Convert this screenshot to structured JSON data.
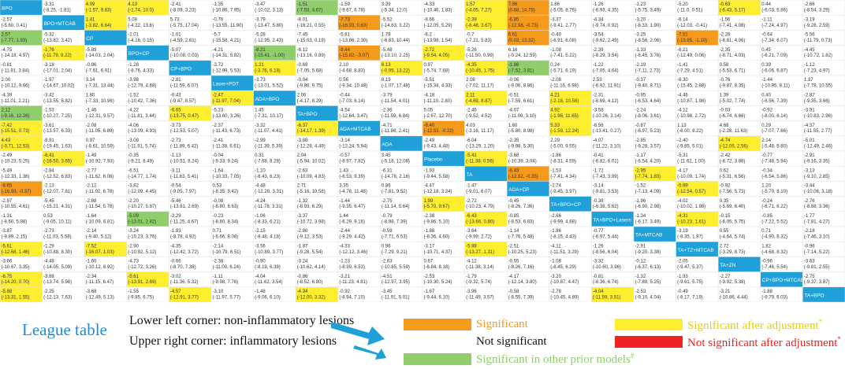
{
  "chart_data": {
    "type": "table",
    "title": "League table",
    "n": 20,
    "upper_right": "Upper right corner: inflammatory lesions",
    "lower_left": "Lower left corner: non-inflammatory lesions",
    "treatments": [
      "BPO",
      "BPO+MTCAB",
      "CP",
      "BPO+CP",
      "CP+BPO",
      "Laser+PDT",
      "ADA+BPO",
      "TA+BPO",
      "ADA+MTCAB",
      "ADA",
      "Placebo",
      "TA",
      "ADA+CP",
      "TA+BPO+CP",
      "TA+BPO+Lasers",
      "TA+MTCAB",
      "TA+TZ+MTCAB",
      "TA+ZN",
      "CP+BPO+MTCAB",
      "TA+BPO"
    ],
    "cells": [
      [
        null,
        "-3.31\n(-8.25, -1.81)",
        "4.09\n(-1.57, 9.83)",
        "4.13\n(-1.74, 10.0)",
        "-2.41\n(-8.09, 3.23)",
        "-1.35\n(-10.86, 7.95)",
        "-3.47\n(-10.02, 3.13)",
        "-1.51\n(-7.53, 4.67)",
        "-1.59\n(-9.67, 6.78)",
        "3.39\n(-5.34, 12.0)",
        "-4.33\n(-10.46, 1.83)",
        "1.57\n(-4.05, 7.27)",
        "7.86\n(0.88, 14.75)",
        "1.86\n(-5.05, 8.76)",
        "-1.26\n(-6.93, 4.35)",
        "-1.23\n(-5.75, 3.49)",
        "-5.20\n(-11.0, 0.51)",
        "-0.63\n(-6.43, 5.17)",
        "0.44\n(-6.03, 6.86)",
        "-2.66\n(-8.54, 3.29)"
      ],
      [
        "-2.57\n(-5.60, 0.41)",
        null,
        "1.41\n(-3.82, 6.64)",
        "5.08\n(-4.22, 13.6)",
        "5.73\n(-5.75, 17.04)",
        "-0.76\n(-13.55, 11.90)",
        "-3.79\n(-13.47, 5.80)",
        "-8.01\n(-16.21, 0.55)",
        "-7.73\n(-16.03, 0.63)",
        "-5.52\n(-14.63, 3.22)",
        "-8.66\n(-12.05, 5.29)",
        "-2.39\n(-8.48, 3.67)",
        "-6.85\n(-12.98, -0.73)",
        "-3.37\n(-9.41, 2.77)",
        "-4.34\n(-9.74, 0.92)",
        "-3.20\n(-8.33, 1.90)",
        "-6.14\n(-12.03, -0.41)",
        "-1.56\n(-7.41, 4.08)",
        "-1.11\n(-7.24, 4.97)",
        "-3.19\n(-9.28, 2.59)"
      ],
      [
        "2.57\n(-7.77, 1.93)",
        "-5.32\n(-13.82, 3.42)",
        null,
        "-2.01\n(-4.16, 0.15)",
        "-1.01\n(-4.59, 2.61)",
        "-5.7\n(-15.58, 4.21)",
        "-5.28\n(-12.95, 2.43)",
        "-7.45\n(-15.03, 0.19)",
        "-5.81\n(-13.86, 2.30)",
        "1.78\n(-6.83, 10.44)",
        "-6.2\n(-13.98, 1.54)",
        "-0.7\n(-7.21, 5.83)",
        "6.61\n(0.03, 13.32)",
        "-0.40\n(-6.91, 6.08)",
        "-3.54\n(-9.62, 2.49)",
        "-3.25\n(-8.56, 2.06)",
        "-7.51\n(-13.95, -1.10)",
        "-2.26\n(-8.61, 4.06)",
        "-0.64\n(-7.34, 6.07)",
        "-5.56\n(-11.79, 0.73)"
      ],
      [
        "-4.75\n(-14.18, 4.97)",
        "-1.76\n(-11.79, 8.22)",
        "-5.89\n(-14.03, 2.04)",
        null,
        "-5.07\n(-10.08, 0.03)",
        "-4.21\n(-14.31, 5.82)",
        "-8.21\n(-15.41, -1.00)",
        "-6.12\n(-13.16, 0.89)",
        "-9.44\n(-15.82, -3.07)",
        "-5.48\n(-13.10, 2.25)",
        "-2.72\n(-9.54, 4.05)",
        "-5.26\n(-11.50, 0.99)",
        "6.16\n(-0.24, 12.59)",
        "-1.08\n(-7.41, 5.22)",
        "-2.39\n(-8.29, 3.54)",
        "-1.33\n(-6.45, 3.76)",
        "-6.21\n(-12.49, 0.06)",
        "-2.35\n(-8.71, 4.03)",
        "0.45\n(-6.21, 7.09)",
        "-4.45\n(-10.72, 1.82)"
      ],
      [
        "-0.81\n(-11.91, 3.84)",
        "-3.18\n(-17.01, 2.04)",
        "-0.86\n(-7.61, 6.91)",
        "-1.28\n(-8.76, 4.33)",
        null,
        "-3.72\n(-12.99, 5.53)",
        "1.21\n(-3.76, 6.18)",
        "-0.69\n(-7.05, 5.68)",
        "2.10\n(-4.68, 8.83)",
        "6.13\n(-0.95, 13.22)",
        "0.97\n(-5.74, 7.68)",
        "-4.35\n(-10.45, 1.75)",
        "-1.86\n(-7.52, 3.81)",
        "0.24\n(-5.71, 6.19)",
        "-1.22\n(-7.05, 4.64)",
        "-2.19\n(-7.11, 2.73)",
        "-1.41\n(-7.29, 4.51)",
        "0.58\n(-5.53, 6.71)",
        "0.39\n(-6.06, 6.87)",
        "-1.12\n(-7.23, 4.97)"
      ],
      [
        "2.00\n(-10.12, 9.66)",
        "-1.97\n(-14.67, 10.02)",
        "3.14\n(-7.31, 13.44)",
        "-3.98\n(-12.79, 4.68)",
        "-2.81\n(-11.59, 6.07)",
        null,
        "-3.73\n(-13.01, 5.52)",
        "-0.04\n(-9.86, 9.75)",
        "0.56\n(-9.34, 10.48)",
        "8.19\n(-1.07, 17.48)",
        "-5.51\n(-15.34, 4.33)",
        "2.08\n(-7.02, 11.17)",
        "-0.06\n(-9.06, 8.86)",
        "-2.08\n(-11.16, 6.98)",
        "2.53\n(-6.92, 11.91)",
        "-0.37\n(-9.40, 8.71)",
        "-6.30\n(-15.45, 2.88)",
        "-0.76\n(-9.87, 8.35)",
        "-1.44\n(-10.95, 8.11)",
        "1.37\n(-7.78, 10.55)"
      ],
      [
        "-4.39\n(-11.01, 2.21)",
        "-3.42\n(-13.55, 6.82)",
        "1.80\n(-7.33, 10.96)",
        "-1.52\n(-10.42, 7.36)",
        "-0.43\n(-9.47, 8.57)",
        "-2.47\n(-11.97, 7.04)",
        null,
        "2.06\n(-4.17, 8.29)",
        "-0.44\n(-7.03, 6.14)",
        "-3.79\n(-11.54, 4.01)",
        "-4.18\n(-11.10, 2.80)",
        "2.11\n(-4.69, 8.87)",
        "-0.51\n(-7.59, 6.61)",
        "4.21\n(-2.18, 10.58)",
        "-2.31\n(-8.69, 4.12)",
        "-0.95\n(-6.53, 4.64)",
        "-4.46\n(-10.87, 1.98)",
        "1.39\n(-5.02, 7.74)",
        "0.40\n(-6.56, 7.39)",
        "-2.87\n(-9.35, 3.66)"
      ],
      [
        "2.12\n(-9.16, 12.26)",
        "-1.53\n(-10.27, 7.25)",
        "-1.46\n(-12.31, 9.57)",
        "-4.22\n(-11.81, 3.44)",
        "-6.65\n(-13.75, 0.47)",
        "-5.23\n(-13.60, 3.26)",
        "1.45\n(-7.31, 10.17)",
        null,
        "-4.54\n(-12.64, 3.47)",
        "-2.36\n(-11.59, 6.84)",
        "5.05\n(-2.67, 12.70)",
        "-2.46\n(-9.52, 4.52)",
        "-4.07\n(-11.09, 3.10)",
        "4.92\n(-1.96, 11.65)",
        "-3.58\n(-10.26, 3.14)",
        "-2.24\n(-8.06, 3.61)",
        "-4.12\n(-10.98, 2.72)",
        "-0.03\n(-6.74, 6.66)",
        "-0.92\n(-8.00, 6.14)",
        "-3.91\n(-10.83, 2.96)"
      ],
      [
        "-7.42\n(-15.51, 0.73)",
        "-3.61\n(-13.57, 6.33)",
        "-2.08\n(-11.05, 6.89)",
        "-4.06\n(-13.09, 4.93)",
        "-3.73\n(-12.53, 5.07)",
        "-2.37\n(-11.43, 6.73)",
        "-3.32\n(-11.07, 4.41)",
        "-6.37\n(-14.17, 1.39)",
        null,
        "-4.71\n(-11.86, 2.41)",
        "-6.40\n(-12.53, -0.22)",
        "4.03\n(-3.16, 11.17)",
        "1.60\n(-5.80, 8.98)",
        "5.33\n(-1.59, 12.24)",
        "-6.56\n(-13.41, 0.27)",
        "-0.87\n(-6.97, 5.23)",
        "1.13\n(-6.00, 8.22)",
        "4.68\n(-2.28, 11.63)",
        "0.29\n(-7.07, 7.66)",
        "-4.37\n(-11.55, 2.77)"
      ],
      [
        "4.43\n(-3.71, 12.53)",
        "-8.91\n(-19.45, 1.63)",
        "0.97\n(-8.61, 10.59)",
        "-3.08\n(-11.91, 5.74)",
        "-2.73\n(-11.89, 6.42)",
        "-2.41\n(-11.38, 6.61)",
        "-2.99\n(-11.39, 5.39)",
        "-3.88\n(-12.28, 4.49)",
        "-3.14\n(-12.24, 5.94)",
        null,
        "-2.49\n(-9.43, 4.48)",
        "-6.04\n(-13.29, 1.20)",
        "-2.35\n(-9.98, 5.30)",
        "2.29\n(-5.00, 9.55)",
        "-4.07\n(-11.22, 3.10)",
        "-2.85\n(-9.28, 3.57)",
        "-2.40\n(-9.85, 5.01)",
        "-4.74\n(-12.05, 2.56)",
        "2.14\n(-5.48, 9.80)",
        "-5.01\n(-12.49, 2.46)"
      ],
      [
        "-2.49\n(-10.23, 5.25)",
        "-6.41\n(-16.50, 3.65)",
        "-1.49\n(-10.92, 7.93)",
        "-0.35\n(-9.21, 8.49)",
        "-1.13\n(-10.51, 8.24)",
        "-0.04\n(-9.33, 9.24)",
        "0.31\n(-7.68, 8.29)",
        "2.04\n(-5.94, 10.02)",
        "-0.57\n(-8.97, 7.82)",
        "3.45\n(-5.18, 12.08)",
        null,
        "-5.41\n(-11.38, 0.56)",
        "-3.68\n(-10.39, 3.04)",
        "-1.86\n(-8.31, 4.59)",
        "-0.41\n(-6.82, 6.01)",
        "-1.17\n(-6.54, 4.20)",
        "-5.31\n(-11.62, 1.00)",
        "-2.42\n(-8.72, 3.88)",
        "-0.77\n(-7.48, 5.94)",
        "-2.91\n(-9.16, 3.35)"
      ],
      [
        "-5.49\n(-12.33, 1.36)",
        "-2.84\n(-12.52, 6.83)",
        "-2.77\n(-11.62, 6.08)",
        "-6.51\n(-14.77, 1.74)",
        "-3.11\n(-11.63, 5.41)",
        "-1.64\n(-10.33, 7.05)",
        "-1.10\n(-8.43, 6.23)",
        "-2.63\n(-10.09, 4.83)",
        "1.43\n(-6.53, 9.39)",
        "-6.31\n(-14.78, 2.16)",
        "-1.93\n(-9.44, 5.58)",
        null,
        "-6.43\n(-12.52, -0.35)",
        "-1.53\n(-7.41, 4.34)",
        "-1.72\n(-7.43, 3.99)",
        "-2.95\n(-7.74, 1.83)",
        "-4.17\n(-10.09, 1.74)",
        "0.62\n(-5.31, 6.56)",
        "-0.34\n(-6.54, 5.86)",
        "-3.13\n(-9.10, 2.85)"
      ],
      [
        "-8.65\n(-16.93, -0.37)",
        "-2.13\n(-12.07, 7.81)",
        "-2.12\n(-11.02, 6.78)",
        "-3.82\n(-12.09, 4.45)",
        "-0.54\n(-9.05, 7.97)",
        "0.53\n(-8.35, 9.42)",
        "-4.48\n(-12.28, 3.31)",
        "2.71\n(-5.16, 10.58)",
        "3.35\n(-4.78, 11.48)",
        "0.86\n(-7.81, 9.52)",
        "-4.47\n(-12.18, 3.24)",
        "-1.47\n(-9.01, 6.07)",
        null,
        "-2.74\n(-9.45, 3.97)",
        "-3.14\n(-9.81, 3.53)",
        "-1.52\n(-7.13, 4.09)",
        "-5.99\n(-12.54, 0.57)",
        "-0.92\n(-7.56, 5.73)",
        "1.20\n(-5.70, 8.10)",
        "-3.44\n(-10.06, 3.18)"
      ],
      [
        "-2.97\n(-10.55, 4.61)",
        "-5.45\n(-15.21, 4.31)",
        "-2.88\n(-11.54, 5.78)",
        "-2.20\n(-10.27, 5.87)",
        "-5.46\n(-13.61, 2.69)",
        "-0.08\n(-8.80, 8.63)",
        "-4.24\n(-11.78, 3.31)",
        "-1.32\n(-8.93, 6.29)",
        "-1.44\n(-9.35, 6.47)",
        "-2.75\n(-11.14, 5.64)",
        "1.99\n(-5.70, 9.67)",
        "-2.72\n(-10.23, 4.79)",
        "-0.45\n(-8.26, 7.36)",
        null,
        "-0.38\n(-6.38, 5.62)",
        "-1.96\n(-6.90, 2.98)",
        "-4.02\n(-10.02, 1.98)",
        "0.35\n(-5.69, 6.40)",
        "-0.24\n(-6.71, 6.22)",
        "-2.76\n(-8.88, 3.36)"
      ],
      [
        "-1.31\n(-8.60, 5.98)",
        "0.53\n(-9.05, 10.11)",
        "-1.64\n(-10.09, 6.81)",
        "-5.09\n(-13.01, 2.82)",
        "-3.29\n(-11.25, 4.67)",
        "-0.23\n(-8.80, 8.34)",
        "-1.06\n(-8.33, 6.21)",
        "-3.37\n(-10.72, 3.98)",
        "1.44\n(-6.29, 9.16)",
        "-0.79\n(-8.98, 7.39)",
        "-2.38\n(-9.86, 5.10)",
        "-6.43\n(-13.66, 0.80)",
        "-0.85\n(-8.53, 6.83)",
        "-2.66\n(-9.99, 4.68)",
        null,
        "-1.34\n(-6.17, 3.49)",
        "-4.31\n(-10.23, 1.61)",
        "-0.15\n(-6.05, 5.75)",
        "-0.85\n(-7.22, 5.52)",
        "-1.77\n(-7.81, 4.27)"
      ],
      [
        "-3.87\n(-9.89, 2.15)",
        "-2.73\n(-11.03, 5.58)",
        "-2.14\n(-9.40, 5.12)",
        "-3.24\n(-10.23, 3.76)",
        "-1.93\n(-8.78, 4.92)",
        "0.71\n(-6.66, 8.08)",
        "-2.15\n(-8.48, 4.18)",
        "-2.80\n(-9.12, 3.53)",
        "-2.44\n(-9.29, 4.42)",
        "-0.59\n(-7.71, 6.53)",
        "-1.88\n(-8.36, 4.60)",
        "-3.64\n(-9.99, 2.72)",
        "-1.14\n(-7.76, 5.48)",
        "-1.86\n(-8.15, 4.43)",
        "-0.77\n(-6.97, 5.44)",
        null,
        "-3.19\n(-8.35, 1.97)",
        "0.55\n(-4.64, 5.74)",
        "0.71\n(-4.90, 6.32)",
        "-2.18\n(-7.46, 3.10)"
      ],
      [
        "-5.61\n(-12.68, 1.46)",
        "-1.29\n(-10.88, 8.30)",
        "-7.52\n(-16.07, 1.03)",
        "-2.90\n(-10.92, 5.12)",
        "-4.35\n(-12.42, 3.72)",
        "-2.14\n(-10.79, 6.51)",
        "-3.56\n(-10.89, 3.77)",
        "-1.87\n(-9.28, 5.54)",
        "-4.33\n(-12.12, 3.46)",
        "0.96\n(-7.29, 9.21)",
        "-3.17\n(-10.71, 4.37)",
        "-5.98\n(-13.27, 1.31)",
        "-2.51\n(-10.25, 5.23)",
        "-4.11\n(-11.51, 3.29)",
        "-1.26\n(-8.56, 6.04)",
        "-2.91\n(-9.20, 3.38)",
        null,
        "2.72\n(-3.29, 8.73)",
        "1.82\n(-4.68, 8.32)",
        "-0.96\n(-7.14, 5.22)"
      ],
      [
        "-3.66\n(-10.67, 3.35)",
        "-4.48\n(-14.05, 5.09)",
        "-1.60\n(-10.12, 6.92)",
        "-4.73\n(-12.72, 3.26)",
        "-0.66\n(-8.70, 7.38)",
        "-2.38\n(-11.00, 6.24)",
        "-0.90\n(-8.19, 6.39)",
        "-3.24\n(-10.62, 4.14)",
        "-1.23\n(-8.99, 6.53)",
        "-2.63\n(-10.85, 5.59)",
        "0.67\n(-6.84, 8.18)",
        "-4.12\n(-11.38, 3.14)",
        "-0.55\n(-8.26, 7.16)",
        "-1.08\n(-8.45, 6.29)",
        "-3.32\n(-10.60, 3.96)",
        "-0.12\n(-6.37, 6.13)",
        "-2.05\n(-9.47, 5.37)",
        null,
        "-0.96\n(-7.46, 5.54)",
        "-3.63\n(-9.81, 2.55)"
      ],
      [
        "-6.75\n(-14.20, 0.70)",
        "-3.88\n(-13.74, 5.98)",
        "-2.34\n(-11.15, 6.47)",
        "-5.61\n(-13.91, 2.69)",
        "-3.02\n(-11.36, 5.32)",
        "-1.11\n(-9.98, 7.76)",
        "-4.04\n(-11.62, 3.54)",
        "-0.86\n(-8.52, 6.80)",
        "-3.21\n(-11.23, 4.81)",
        "-4.51\n(-12.97, 3.95)",
        "-2.53\n(-10.30, 5.24)",
        "-1.79\n(-9.32, 5.74)",
        "-4.17\n(-12.14, 3.80)",
        "-3.20\n(-10.87, 4.47)",
        "-0.81\n(-8.36, 6.74)",
        "-1.32\n(-7.89, 5.25)",
        "-1.93\n(-9.61, 5.75)",
        "-2.27\n(-9.92, 5.38)",
        null,
        "-2.75\n(-9.37, 3.87)"
      ],
      [
        "-5.88\n(-13.31, 1.55)",
        "-2.25\n(-12.13, 7.63)",
        "-3.68\n(-12.49, 5.13)",
        "-1.55\n(-9.85, 6.75)",
        "-4.57\n(-12.91, 3.77)",
        "-3.10\n(-11.97, 5.77)",
        "-1.48\n(-9.06, 6.10)",
        "-4.34\n(-12.00, 3.32)",
        "-0.92\n(-8.94, 7.10)",
        "-3.45\n(-11.91, 5.01)",
        "-1.67\n(-9.44, 6.10)",
        "-3.96\n(-11.49, 3.57)",
        "-0.58\n(-8.55, 7.39)",
        "-2.78\n(-10.45, 4.89)",
        "-4.04\n(-11.59, 3.51)",
        "-2.53\n(-9.10, 4.04)",
        "-0.49\n(-8.17, 7.19)",
        "-3.21\n(-10.86, 4.44)",
        "-1.88\n(-9.79, 6.03)",
        null
      ]
    ],
    "cell_status": [
      [
        "t",
        "n",
        "y",
        "y",
        "n",
        "n",
        "n",
        "g",
        "n",
        "n",
        "n",
        "y",
        "o",
        "n",
        "n",
        "n",
        "n",
        "y",
        "n",
        "n"
      ],
      [
        "n",
        "t",
        "y",
        "n",
        "n",
        "n",
        "n",
        "n",
        "o",
        "n",
        "n",
        "y",
        "o",
        "n",
        "n",
        "n",
        "n",
        "n",
        "n",
        "n"
      ],
      [
        "g",
        "n",
        "t",
        "n",
        "n",
        "n",
        "n",
        "n",
        "n",
        "n",
        "n",
        "n",
        "o",
        "n",
        "n",
        "n",
        "o",
        "n",
        "n",
        "n"
      ],
      [
        "n",
        "y",
        "n",
        "t",
        "n",
        "n",
        "g",
        "n",
        "o",
        "n",
        "y",
        "n",
        "n",
        "n",
        "n",
        "n",
        "n",
        "n",
        "n",
        "n"
      ],
      [
        "n",
        "n",
        "n",
        "n",
        "t",
        "n",
        "y",
        "n",
        "n",
        "y",
        "n",
        "y",
        "g",
        "n",
        "n",
        "n",
        "n",
        "n",
        "n",
        "n"
      ],
      [
        "n",
        "n",
        "n",
        "n",
        "n",
        "t",
        "n",
        "n",
        "n",
        "n",
        "n",
        "n",
        "n",
        "n",
        "n",
        "n",
        "n",
        "n",
        "n",
        "n"
      ],
      [
        "n",
        "n",
        "n",
        "n",
        "n",
        "y",
        "t",
        "n",
        "n",
        "n",
        "n",
        "y",
        "n",
        "y",
        "n",
        "n",
        "n",
        "n",
        "n",
        "n"
      ],
      [
        "g",
        "n",
        "n",
        "n",
        "y",
        "n",
        "n",
        "t",
        "n",
        "n",
        "n",
        "n",
        "n",
        "y",
        "n",
        "n",
        "n",
        "n",
        "n",
        "n"
      ],
      [
        "y",
        "n",
        "n",
        "n",
        "n",
        "n",
        "n",
        "y",
        "t",
        "n",
        "o",
        "n",
        "n",
        "y",
        "n",
        "n",
        "n",
        "n",
        "n",
        "n"
      ],
      [
        "y",
        "n",
        "n",
        "n",
        "n",
        "n",
        "n",
        "n",
        "n",
        "t",
        "n",
        "n",
        "n",
        "n",
        "n",
        "n",
        "n",
        "y",
        "n",
        "n"
      ],
      [
        "n",
        "y",
        "n",
        "n",
        "n",
        "n",
        "n",
        "n",
        "n",
        "n",
        "t",
        "y",
        "n",
        "n",
        "n",
        "n",
        "n",
        "n",
        "n",
        "n"
      ],
      [
        "n",
        "n",
        "n",
        "n",
        "n",
        "n",
        "n",
        "n",
        "n",
        "n",
        "n",
        "t",
        "o",
        "n",
        "n",
        "y",
        "n",
        "n",
        "n",
        "n"
      ],
      [
        "o",
        "n",
        "n",
        "n",
        "n",
        "n",
        "n",
        "n",
        "n",
        "n",
        "n",
        "n",
        "t",
        "n",
        "n",
        "n",
        "y",
        "n",
        "n",
        "n"
      ],
      [
        "n",
        "n",
        "n",
        "n",
        "n",
        "n",
        "n",
        "n",
        "n",
        "n",
        "y",
        "n",
        "n",
        "t",
        "n",
        "n",
        "n",
        "n",
        "n",
        "n"
      ],
      [
        "n",
        "n",
        "n",
        "g",
        "n",
        "n",
        "n",
        "n",
        "n",
        "n",
        "n",
        "y",
        "n",
        "n",
        "t",
        "n",
        "y",
        "n",
        "n",
        "n"
      ],
      [
        "n",
        "n",
        "n",
        "n",
        "n",
        "n",
        "n",
        "n",
        "n",
        "n",
        "n",
        "n",
        "n",
        "n",
        "n",
        "t",
        "n",
        "n",
        "n",
        "n"
      ],
      [
        "y",
        "n",
        "y",
        "n",
        "n",
        "n",
        "n",
        "n",
        "n",
        "n",
        "n",
        "y",
        "n",
        "n",
        "n",
        "n",
        "t",
        "n",
        "n",
        "n"
      ],
      [
        "n",
        "n",
        "n",
        "n",
        "n",
        "n",
        "n",
        "n",
        "n",
        "n",
        "n",
        "n",
        "n",
        "n",
        "n",
        "n",
        "n",
        "t",
        "n",
        "n"
      ],
      [
        "y",
        "n",
        "n",
        "y",
        "n",
        "n",
        "n",
        "n",
        "n",
        "n",
        "n",
        "n",
        "n",
        "n",
        "n",
        "n",
        "n",
        "n",
        "t",
        "n"
      ],
      [
        "y",
        "n",
        "n",
        "n",
        "y",
        "n",
        "n",
        "y",
        "n",
        "n",
        "n",
        "n",
        "n",
        "n",
        "y",
        "n",
        "n",
        "n",
        "n",
        "t"
      ]
    ],
    "colors": {
      "o": "#f59a1a",
      "y": "#ffee2e",
      "r": "#ee2222",
      "g": "#8fce6a",
      "n": "#ffffff",
      "t": "#1fa0d8"
    }
  },
  "legend": {
    "title": "League table",
    "lower_left": "Lower left corner: non-inflammatory lesions",
    "upper_right": "Upper right corner: inflammatory lesions",
    "items": [
      {
        "key": "o",
        "label": "Significant",
        "color": "#f59a1a"
      },
      {
        "key": "n",
        "label": "Not significant",
        "color": "#ffffff"
      },
      {
        "key": "g",
        "label": "Significant in other prior models",
        "color": "#8fce6a"
      },
      {
        "key": "y",
        "label": "Significant after adjustment",
        "color": "#ffee2e"
      },
      {
        "key": "r",
        "label": "Not significant after adjustment",
        "color": "#ee2222"
      }
    ]
  }
}
